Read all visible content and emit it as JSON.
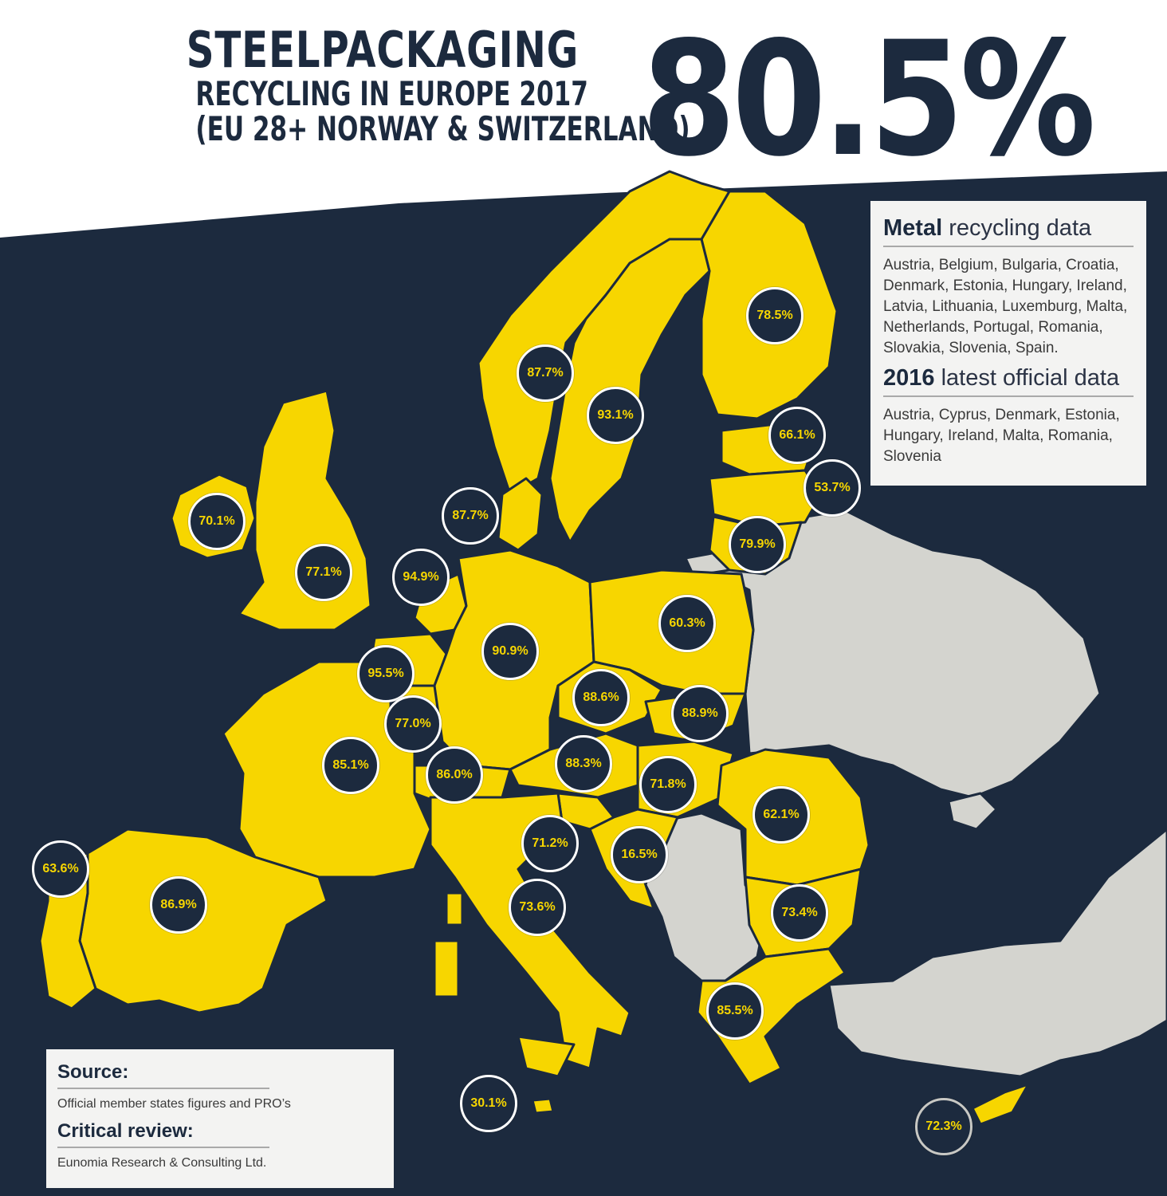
{
  "title": {
    "line1": "STEELPACKAGING",
    "line2": "RECYCLING IN EUROPE 2017",
    "line3": "(EU 28+ NORWAY & SWITZERLAND)",
    "overall": "80.5%"
  },
  "colors": {
    "sea": "#1c2a3e",
    "member_country": "#f7d600",
    "other_country": "#d4d4cf",
    "badge_text": "#f7d600"
  },
  "countries": [
    {
      "name": "Finland",
      "rate": "78.5%"
    },
    {
      "name": "Norway",
      "rate": "87.7%"
    },
    {
      "name": "Sweden",
      "rate": "93.1%"
    },
    {
      "name": "Estonia",
      "rate": "66.1%"
    },
    {
      "name": "Latvia",
      "rate": "53.7%"
    },
    {
      "name": "Denmark",
      "rate": "87.7%"
    },
    {
      "name": "Ireland",
      "rate": "70.1%"
    },
    {
      "name": "Lithuania",
      "rate": "79.9%"
    },
    {
      "name": "United Kingdom",
      "rate": "77.1%"
    },
    {
      "name": "Netherlands",
      "rate": "94.9%"
    },
    {
      "name": "Poland",
      "rate": "60.3%"
    },
    {
      "name": "Germany",
      "rate": "90.9%"
    },
    {
      "name": "Belgium",
      "rate": "95.5%"
    },
    {
      "name": "Czech Republic",
      "rate": "88.6%"
    },
    {
      "name": "Slovakia",
      "rate": "88.9%"
    },
    {
      "name": "Luxembourg",
      "rate": "77.0%"
    },
    {
      "name": "France",
      "rate": "85.1%"
    },
    {
      "name": "Switzerland",
      "rate": "86.0%"
    },
    {
      "name": "Austria",
      "rate": "88.3%"
    },
    {
      "name": "Hungary",
      "rate": "71.8%"
    },
    {
      "name": "Romania",
      "rate": "62.1%"
    },
    {
      "name": "Slovenia",
      "rate": "71.2%"
    },
    {
      "name": "Croatia",
      "rate": "16.5%"
    },
    {
      "name": "Portugal",
      "rate": "63.6%"
    },
    {
      "name": "Spain",
      "rate": "86.9%"
    },
    {
      "name": "Italy",
      "rate": "73.6%"
    },
    {
      "name": "Bulgaria",
      "rate": "73.4%"
    },
    {
      "name": "Greece",
      "rate": "85.5%"
    },
    {
      "name": "Malta",
      "rate": "30.1%"
    },
    {
      "name": "Cyprus",
      "rate": "72.3%"
    }
  ],
  "info": {
    "metal_head_bold": "Metal",
    "metal_head_rest": " recycling data",
    "metal_list": "Austria, Belgium, Bulgaria, Croatia, Denmark, Estonia, Hungary, Ireland, Latvia, Lithuania, Luxemburg, Malta, Netherlands, Portugal, Romania, Slovakia, Slovenia, Spain.",
    "latest_head_bold": "2016",
    "latest_head_rest": " latest official data",
    "latest_list": "Austria, Cyprus, Denmark, Estonia, Hungary, Ireland, Malta, Romania, Slovenia"
  },
  "source": {
    "source_head": "Source:",
    "source_text": "Official member states figures and PRO’s",
    "review_head": "Critical review:",
    "review_text": "Eunomia Research & Consulting Ltd."
  }
}
